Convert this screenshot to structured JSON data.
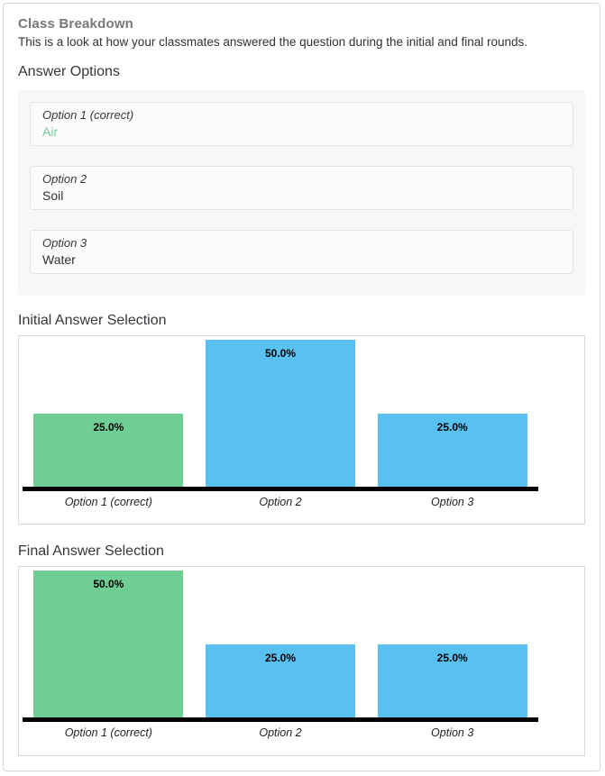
{
  "header": {
    "title": "Class Breakdown",
    "description": "This is a look at how your classmates answered the question during the initial and final rounds."
  },
  "answer_options": {
    "heading": "Answer Options",
    "options": [
      {
        "label": "Option 1 (correct)",
        "value": "Air",
        "correct": true
      },
      {
        "label": "Option 2",
        "value": "Soil",
        "correct": false
      },
      {
        "label": "Option 3",
        "value": "Water",
        "correct": false
      }
    ]
  },
  "chart_data": [
    {
      "type": "bar",
      "title": "Initial Answer Selection",
      "categories": [
        "Option 1 (correct)",
        "Option 2",
        "Option 3"
      ],
      "values": [
        25.0,
        50.0,
        25.0
      ],
      "value_labels": [
        "25.0%",
        "50.0%",
        "25.0%"
      ],
      "bar_colors": [
        "#6fce93",
        "#58c1f0",
        "#58c1f0"
      ],
      "ylim": [
        0,
        100
      ],
      "grid": false,
      "legend": "none",
      "xlabel": "",
      "ylabel": ""
    },
    {
      "type": "bar",
      "title": "Final Answer Selection",
      "categories": [
        "Option 1 (correct)",
        "Option 2",
        "Option 3"
      ],
      "values": [
        50.0,
        25.0,
        25.0
      ],
      "value_labels": [
        "50.0%",
        "25.0%",
        "25.0%"
      ],
      "bar_colors": [
        "#6fce93",
        "#58c1f0",
        "#58c1f0"
      ],
      "ylim": [
        0,
        100
      ],
      "grid": false,
      "legend": "none",
      "xlabel": "",
      "ylabel": ""
    }
  ],
  "colors": {
    "correct_green": "#6fce93",
    "other_blue": "#58c1f0",
    "title_gray": "#75787b",
    "axis_black": "#000000"
  }
}
